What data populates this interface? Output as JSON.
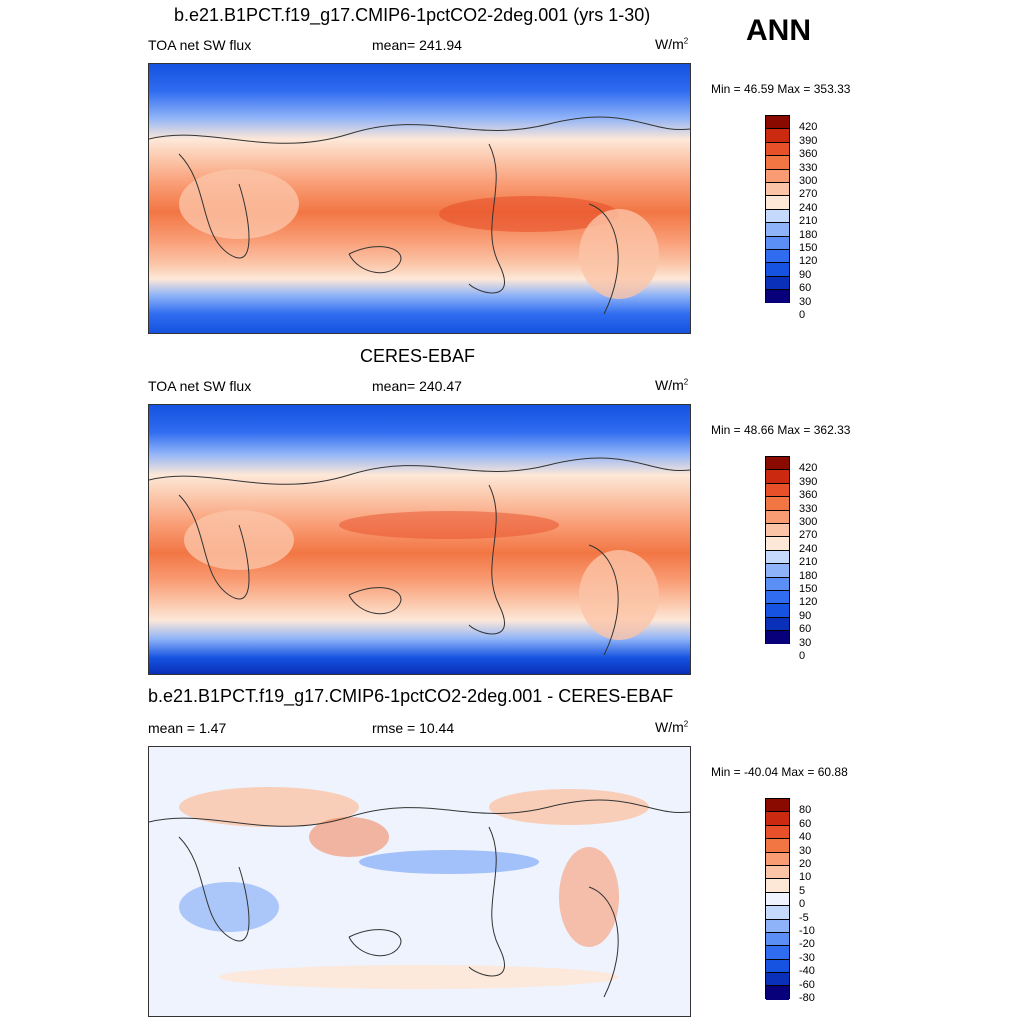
{
  "season": "ANN",
  "palettes": {
    "abs": [
      "#08007a",
      "#0a2fb8",
      "#1553e0",
      "#2f6cf0",
      "#5b8ff5",
      "#8fb3f8",
      "#c4d9fb",
      "#fde8d8",
      "#fbc4a7",
      "#f99b73",
      "#f27644",
      "#e8502a",
      "#cc2a10",
      "#8a0a00"
    ],
    "diff": [
      "#08007a",
      "#0a2fb8",
      "#1553e0",
      "#2f6cf0",
      "#5b8ff5",
      "#8fb3f8",
      "#c4d9fb",
      "#eef3fd",
      "#fde8d8",
      "#fbc4a7",
      "#f99b73",
      "#f27644",
      "#e8502a",
      "#cc2a10",
      "#8a0a00"
    ]
  },
  "panels": [
    {
      "title": "b.e21.B1PCT.f19_g17.CMIP6-1pctCO2-2deg.001 (yrs 1-30)",
      "left_label": "TOA net SW flux",
      "center_label": "mean= 241.94",
      "units": "W/m",
      "units_sup": "2",
      "minmax": "Min =  46.59 Max = 353.33",
      "colorbar_ticks": [
        "420",
        "390",
        "360",
        "330",
        "300",
        "270",
        "240",
        "210",
        "180",
        "150",
        "120",
        "90",
        "60",
        "30",
        "0"
      ]
    },
    {
      "title": "CERES-EBAF",
      "left_label": "TOA net SW flux",
      "center_label": "mean= 240.47",
      "units": "W/m",
      "units_sup": "2",
      "minmax": "Min =  48.66 Max = 362.33",
      "colorbar_ticks": [
        "420",
        "390",
        "360",
        "330",
        "300",
        "270",
        "240",
        "210",
        "180",
        "150",
        "120",
        "90",
        "60",
        "30",
        "0"
      ]
    },
    {
      "title": "b.e21.B1PCT.f19_g17.CMIP6-1pctCO2-2deg.001 - CERES-EBAF",
      "left_label": "mean =   1.47",
      "center_label": "rmse =  10.44",
      "units": "W/m",
      "units_sup": "2",
      "minmax": "Min = -40.04 Max =  60.88",
      "colorbar_ticks": [
        "80",
        "60",
        "40",
        "30",
        "20",
        "10",
        "5",
        "0",
        "-5",
        "-10",
        "-20",
        "-30",
        "-40",
        "-60",
        "-80"
      ]
    }
  ],
  "chart_data": [
    {
      "type": "heatmap",
      "title": "b.e21.B1PCT.f19_g17.CMIP6-1pctCO2-2deg.001 (yrs 1-30)",
      "variable": "TOA net SW flux",
      "units": "W/m2",
      "mean": 241.94,
      "min": 46.59,
      "max": 353.33,
      "levels": [
        0,
        30,
        60,
        90,
        120,
        150,
        180,
        210,
        240,
        270,
        300,
        330,
        360,
        390,
        420
      ]
    },
    {
      "type": "heatmap",
      "title": "CERES-EBAF",
      "variable": "TOA net SW flux",
      "units": "W/m2",
      "mean": 240.47,
      "min": 48.66,
      "max": 362.33,
      "levels": [
        0,
        30,
        60,
        90,
        120,
        150,
        180,
        210,
        240,
        270,
        300,
        330,
        360,
        390,
        420
      ]
    },
    {
      "type": "heatmap",
      "title": "b.e21.B1PCT.f19_g17.CMIP6-1pctCO2-2deg.001 - CERES-EBAF",
      "units": "W/m2",
      "mean": 1.47,
      "rmse": 10.44,
      "min": -40.04,
      "max": 60.88,
      "levels": [
        -80,
        -60,
        -40,
        -30,
        -20,
        -10,
        -5,
        0,
        5,
        10,
        20,
        30,
        40,
        60,
        80
      ]
    }
  ]
}
